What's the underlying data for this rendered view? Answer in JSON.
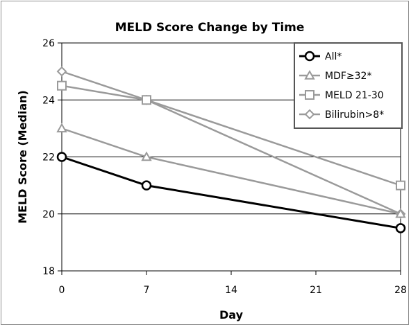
{
  "chart_data": {
    "type": "line",
    "title": "MELD Score Change by Time",
    "xlabel": "Day",
    "ylabel": "MELD Score (Median)",
    "x": [
      0,
      7,
      14,
      21,
      28
    ],
    "xlim": [
      0,
      28
    ],
    "ylim": [
      18,
      26
    ],
    "yticks": [
      18,
      20,
      22,
      24,
      26
    ],
    "xticks": [
      0,
      7,
      14,
      21,
      28
    ],
    "grid": "horizontal",
    "legend_position": "top-right",
    "series": [
      {
        "name": "All*",
        "marker": "circle",
        "color": "#000000",
        "x": [
          0,
          7,
          28
        ],
        "values": [
          22,
          21,
          19.5
        ]
      },
      {
        "name": "MDF≥32*",
        "marker": "triangle",
        "color": "#9a9a9a",
        "x": [
          0,
          7,
          28
        ],
        "values": [
          23,
          22,
          20
        ]
      },
      {
        "name": "MELD 21-30",
        "marker": "square",
        "color": "#9a9a9a",
        "x": [
          0,
          7,
          28
        ],
        "values": [
          24.5,
          24,
          21
        ]
      },
      {
        "name": "Bilirubin>8*",
        "marker": "diamond",
        "color": "#9a9a9a",
        "x": [
          0,
          7,
          28
        ],
        "values": [
          25,
          24,
          20
        ]
      }
    ]
  }
}
